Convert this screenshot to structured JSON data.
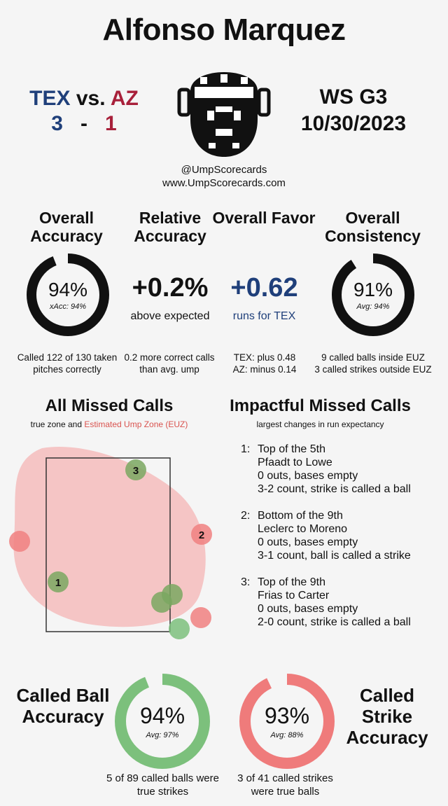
{
  "header": {
    "name": "Alfonso Marquez",
    "away_team": "TEX",
    "vs": "vs.",
    "home_team": "AZ",
    "away_score": "3",
    "dash": "-",
    "home_score": "1",
    "game": "WS G3",
    "date": "10/30/2023",
    "handle": "@UmpScorecards",
    "website": "www.UmpScorecards.com"
  },
  "metrics": [
    {
      "title": "Overall Accuracy",
      "value": "94%",
      "avg": "xAcc: 94%",
      "note": "Called 122 of 130 taken pitches correctly",
      "fraction": 0.94
    },
    {
      "title": "Relative Accuracy",
      "value": "+0.2%",
      "sub": "above expected",
      "note": "0.2 more correct calls than avg. ump"
    },
    {
      "title": "Overall Favor",
      "value": "+0.62",
      "sub": "runs for TEX",
      "note_lines": [
        "TEX: plus 0.48",
        "AZ: minus 0.14"
      ]
    },
    {
      "title": "Overall Consistency",
      "value": "91%",
      "avg": "Avg: 94%",
      "note_lines": [
        "9 called balls inside EUZ",
        "3 called strikes outside EUZ"
      ],
      "fraction": 0.91
    }
  ],
  "missed": {
    "title": "All Missed Calls",
    "subtitle_plain": "true zone and",
    "subtitle_colored": "Estimated Ump Zone (EUZ)",
    "markers": [
      "1",
      "2",
      "3"
    ]
  },
  "impactful": {
    "title": "Impactful Missed Calls",
    "subtitle": "largest changes in run expectancy",
    "items": [
      {
        "num": "1:",
        "lines": [
          "Top of the 5th",
          "Pfaadt to Lowe",
          "0 outs, bases empty",
          "3-2 count, strike is called a ball"
        ]
      },
      {
        "num": "2:",
        "lines": [
          "Bottom of the 9th",
          "Leclerc to Moreno",
          "0 outs, bases empty",
          "3-1 count, ball is called a strike"
        ]
      },
      {
        "num": "3:",
        "lines": [
          "Top of the 9th",
          "Frias to Carter",
          "0 outs, bases empty",
          "2-0 count, strike is called a ball"
        ]
      }
    ]
  },
  "bottom": {
    "ball": {
      "title": "Called Ball Accuracy",
      "value": "94%",
      "avg": "Avg: 97%",
      "note": "5 of 89 called balls were true strikes",
      "fraction": 0.94,
      "color": "#7cc07c"
    },
    "strike": {
      "title": "Called Strike Accuracy",
      "value": "93%",
      "avg": "Avg: 88%",
      "note": "3 of 41 called strikes were true balls",
      "fraction": 0.93,
      "color": "#ef7b7b"
    }
  },
  "colors": {
    "tex": "#1f3f7a",
    "az": "#a8203a",
    "euz": "#f4b4b4",
    "ball_marker": "#f08080",
    "strike_marker": "#7cc07c"
  }
}
